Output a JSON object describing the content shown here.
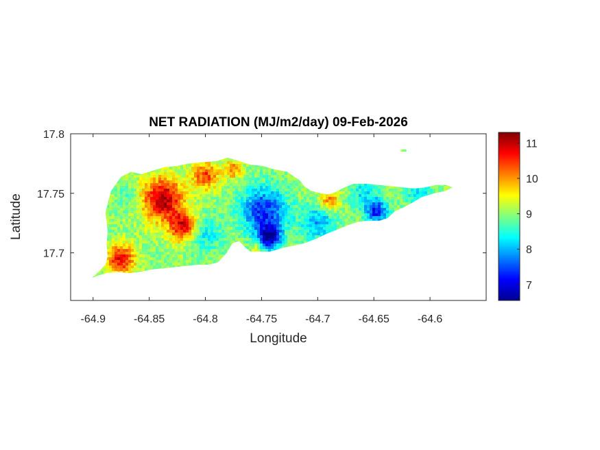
{
  "chart_data": {
    "type": "heatmap",
    "title": "NET RADIATION (MJ/m2/day) 09-Feb-2026",
    "xlabel": "Longitude",
    "ylabel": "Latitude",
    "xlim": [
      -64.92,
      -64.55
    ],
    "ylim": [
      17.66,
      17.8
    ],
    "x_ticks": [
      -64.9,
      -64.85,
      -64.8,
      -64.75,
      -64.7,
      -64.65,
      -64.6
    ],
    "x_tick_labels": [
      "-64.9",
      "-64.85",
      "-64.8",
      "-64.75",
      "-64.7",
      "-64.65",
      "-64.6"
    ],
    "y_ticks": [
      17.7,
      17.75,
      17.8
    ],
    "y_tick_labels": [
      "17.7",
      "17.75",
      "17.8"
    ],
    "colorbar": {
      "colormap": "jet",
      "range": [
        6.55,
        11.3
      ],
      "ticks": [
        7,
        8,
        9,
        10,
        11
      ],
      "tick_labels": [
        "7",
        "8",
        "9",
        "10",
        "11"
      ]
    },
    "grid": false,
    "island_outline": [
      [
        -64.901,
        17.679
      ],
      [
        -64.895,
        17.684
      ],
      [
        -64.889,
        17.69
      ],
      [
        -64.887,
        17.697
      ],
      [
        -64.888,
        17.707
      ],
      [
        -64.887,
        17.718
      ],
      [
        -64.888,
        17.727
      ],
      [
        -64.889,
        17.734
      ],
      [
        -64.887,
        17.741
      ],
      [
        -64.884,
        17.752
      ],
      [
        -64.875,
        17.764
      ],
      [
        -64.866,
        17.768
      ],
      [
        -64.857,
        17.766
      ],
      [
        -64.847,
        17.769
      ],
      [
        -64.836,
        17.772
      ],
      [
        -64.825,
        17.773
      ],
      [
        -64.815,
        17.775
      ],
      [
        -64.805,
        17.776
      ],
      [
        -64.79,
        17.777
      ],
      [
        -64.78,
        17.78
      ],
      [
        -64.77,
        17.777
      ],
      [
        -64.76,
        17.774
      ],
      [
        -64.749,
        17.773
      ],
      [
        -64.738,
        17.77
      ],
      [
        -64.727,
        17.768
      ],
      [
        -64.721,
        17.764
      ],
      [
        -64.716,
        17.761
      ],
      [
        -64.712,
        17.756
      ],
      [
        -64.706,
        17.752
      ],
      [
        -64.697,
        17.75
      ],
      [
        -64.69,
        17.749
      ],
      [
        -64.684,
        17.751
      ],
      [
        -64.676,
        17.755
      ],
      [
        -64.668,
        17.758
      ],
      [
        -64.657,
        17.758
      ],
      [
        -64.646,
        17.757
      ],
      [
        -64.635,
        17.756
      ],
      [
        -64.625,
        17.755
      ],
      [
        -64.614,
        17.754
      ],
      [
        -64.604,
        17.755
      ],
      [
        -64.594,
        17.757
      ],
      [
        -64.586,
        17.757
      ],
      [
        -64.58,
        17.755
      ],
      [
        -64.586,
        17.752
      ],
      [
        -64.596,
        17.75
      ],
      [
        -64.607,
        17.747
      ],
      [
        -64.616,
        17.742
      ],
      [
        -64.624,
        17.738
      ],
      [
        -64.631,
        17.735
      ],
      [
        -64.638,
        17.729
      ],
      [
        -64.645,
        17.727
      ],
      [
        -64.655,
        17.727
      ],
      [
        -64.664,
        17.726
      ],
      [
        -64.674,
        17.723
      ],
      [
        -64.684,
        17.719
      ],
      [
        -64.692,
        17.716
      ],
      [
        -64.701,
        17.712
      ],
      [
        -64.712,
        17.708
      ],
      [
        -64.722,
        17.706
      ],
      [
        -64.732,
        17.704
      ],
      [
        -64.742,
        17.701
      ],
      [
        -64.752,
        17.701
      ],
      [
        -64.76,
        17.701
      ],
      [
        -64.764,
        17.704
      ],
      [
        -64.77,
        17.71
      ],
      [
        -64.776,
        17.708
      ],
      [
        -64.781,
        17.7
      ],
      [
        -64.789,
        17.692
      ],
      [
        -64.797,
        17.69
      ],
      [
        -64.807,
        17.69
      ],
      [
        -64.817,
        17.689
      ],
      [
        -64.827,
        17.688
      ],
      [
        -64.837,
        17.687
      ],
      [
        -64.848,
        17.686
      ],
      [
        -64.858,
        17.684
      ],
      [
        -64.868,
        17.683
      ],
      [
        -64.878,
        17.684
      ],
      [
        -64.888,
        17.683
      ],
      [
        -64.895,
        17.681
      ]
    ],
    "islet_outline": [
      [
        -64.626,
        17.787
      ],
      [
        -64.621,
        17.787
      ],
      [
        -64.621,
        17.785
      ],
      [
        -64.626,
        17.785
      ]
    ],
    "hotspots": [
      {
        "lon": -64.838,
        "lat": 17.745,
        "value": 11.1,
        "spread": 0.018
      },
      {
        "lon": -64.82,
        "lat": 17.722,
        "value": 10.8,
        "spread": 0.012
      },
      {
        "lon": -64.875,
        "lat": 17.695,
        "value": 10.8,
        "spread": 0.012
      },
      {
        "lon": -64.8,
        "lat": 17.765,
        "value": 10.4,
        "spread": 0.012
      },
      {
        "lon": -64.775,
        "lat": 17.77,
        "value": 10.1,
        "spread": 0.008
      },
      {
        "lon": -64.69,
        "lat": 17.745,
        "value": 10.1,
        "spread": 0.009
      },
      {
        "lon": -64.755,
        "lat": 17.705,
        "value": 9.5,
        "spread": 0.006
      },
      {
        "lon": -64.748,
        "lat": 17.735,
        "value": 7.3,
        "spread": 0.02
      },
      {
        "lon": -64.743,
        "lat": 17.713,
        "value": 6.9,
        "spread": 0.01
      },
      {
        "lon": -64.648,
        "lat": 17.735,
        "value": 7.3,
        "spread": 0.01
      },
      {
        "lon": -64.7,
        "lat": 17.725,
        "value": 8.0,
        "spread": 0.015
      },
      {
        "lon": -64.8,
        "lat": 17.715,
        "value": 8.3,
        "spread": 0.014
      },
      {
        "lon": -64.61,
        "lat": 17.75,
        "value": 8.3,
        "spread": 0.012
      },
      {
        "lon": -64.87,
        "lat": 17.748,
        "value": 8.6,
        "spread": 0.01
      },
      {
        "lon": -64.66,
        "lat": 17.75,
        "value": 8.3,
        "spread": 0.012
      }
    ],
    "base_value": 9.0
  }
}
